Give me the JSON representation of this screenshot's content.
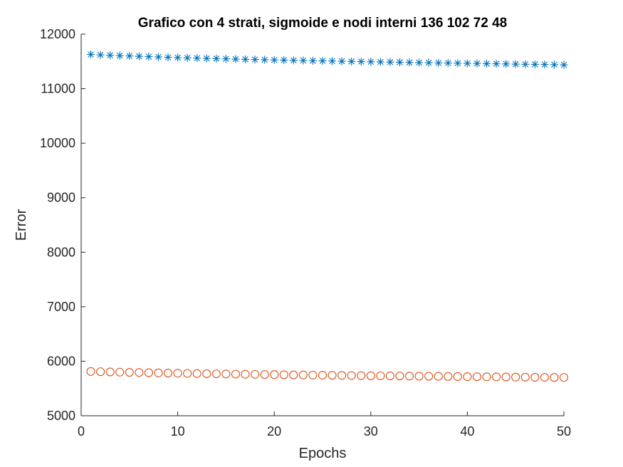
{
  "chart_data": {
    "type": "scatter",
    "title": "Grafico con 4 strati, sigmoide e nodi interni 136  102   72   48",
    "xlabel": "Epochs",
    "ylabel": "Error",
    "xlim": [
      0,
      50
    ],
    "ylim": [
      5000,
      12000
    ],
    "xticks": [
      0,
      10,
      20,
      30,
      40,
      50
    ],
    "xtick_labels": [
      "0",
      "10",
      "20",
      "30",
      "40",
      "50"
    ],
    "yticks": [
      5000,
      6000,
      7000,
      8000,
      9000,
      10000,
      11000,
      12000
    ],
    "ytick_labels": [
      "5000",
      "6000",
      "7000",
      "8000",
      "9000",
      "10000",
      "11000",
      "12000"
    ],
    "grid": false,
    "x": [
      1,
      2,
      3,
      4,
      5,
      6,
      7,
      8,
      9,
      10,
      11,
      12,
      13,
      14,
      15,
      16,
      17,
      18,
      19,
      20,
      21,
      22,
      23,
      24,
      25,
      26,
      27,
      28,
      29,
      30,
      31,
      32,
      33,
      34,
      35,
      36,
      37,
      38,
      39,
      40,
      41,
      42,
      43,
      44,
      45,
      46,
      47,
      48,
      49,
      50
    ],
    "series": [
      {
        "name": "series-1",
        "marker": "asterisk",
        "color": "#0072BD",
        "values": [
          11628,
          11620,
          11613,
          11606,
          11600,
          11594,
          11588,
          11582,
          11576,
          11571,
          11566,
          11561,
          11556,
          11552,
          11548,
          11543,
          11539,
          11535,
          11531,
          11527,
          11524,
          11520,
          11517,
          11513,
          11510,
          11507,
          11503,
          11500,
          11497,
          11494,
          11491,
          11488,
          11485,
          11482,
          11479,
          11476,
          11473,
          11471,
          11468,
          11465,
          11462,
          11459,
          11457,
          11454,
          11451,
          11448,
          11446,
          11443,
          11440,
          11437
        ]
      },
      {
        "name": "series-2",
        "marker": "circle",
        "color": "#D95319",
        "values": [
          5812,
          5808,
          5804,
          5800,
          5796,
          5793,
          5789,
          5786,
          5783,
          5780,
          5777,
          5774,
          5771,
          5769,
          5766,
          5764,
          5761,
          5759,
          5757,
          5755,
          5752,
          5750,
          5748,
          5746,
          5744,
          5742,
          5740,
          5738,
          5736,
          5734,
          5733,
          5731,
          5729,
          5727,
          5726,
          5724,
          5722,
          5721,
          5719,
          5717,
          5716,
          5714,
          5713,
          5711,
          5709,
          5708,
          5706,
          5705,
          5703,
          5702
        ]
      }
    ]
  }
}
